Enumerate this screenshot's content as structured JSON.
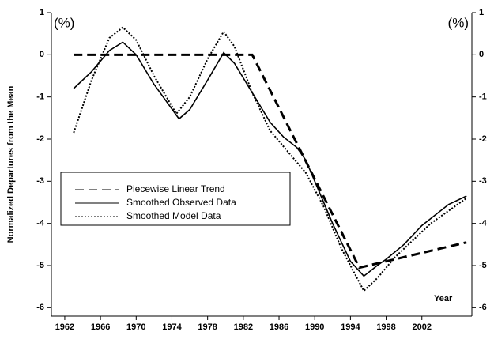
{
  "chart_data": {
    "type": "line",
    "y_label": "Normalized Departures from the Mean",
    "annotations": [
      "(%)",
      "(%)",
      "Year"
    ],
    "xlim": [
      1960.5,
      2007.6
    ],
    "xticks": [
      1962,
      1966,
      1970,
      1974,
      1978,
      1982,
      1986,
      1990,
      1994,
      1998,
      2002
    ],
    "ylim": [
      -6.2,
      1
    ],
    "yticks": [
      -6,
      -5,
      -4,
      -3,
      -2,
      -1,
      0,
      1
    ],
    "legend": "lower-left",
    "series": [
      {
        "name": "Piecewise Linear Trend",
        "color": "#000000",
        "style": "dashed",
        "x": [
          1963,
          1983,
          1995,
          2007
        ],
        "values": [
          0,
          0,
          -5.05,
          -4.45
        ]
      },
      {
        "name": "Smoothed Observed Data",
        "color": "#000000",
        "style": "solid",
        "x": [
          1963,
          1965,
          1967,
          1968.5,
          1970,
          1972,
          1974.8,
          1976,
          1978,
          1979.8,
          1981,
          1983,
          1985,
          1986.5,
          1988,
          1989,
          1990,
          1992,
          1994,
          1995.5,
          1997,
          1998,
          2000,
          2002,
          2005,
          2007
        ],
        "values": [
          -0.8,
          -0.4,
          0.1,
          0.3,
          0,
          -0.7,
          -1.52,
          -1.3,
          -0.6,
          0.05,
          -0.2,
          -0.9,
          -1.6,
          -1.95,
          -2.2,
          -2.5,
          -3.0,
          -4.0,
          -4.9,
          -5.25,
          -5.0,
          -4.85,
          -4.5,
          -4.05,
          -3.55,
          -3.35
        ]
      },
      {
        "name": "Smoothed Model Data",
        "color": "#000000",
        "style": "dotted",
        "x": [
          1963,
          1965,
          1967,
          1968.5,
          1970,
          1972,
          1974.5,
          1976,
          1978,
          1979.8,
          1981,
          1983,
          1985,
          1987,
          1989,
          1991,
          1993,
          1995.5,
          1997,
          1999,
          2001,
          2003,
          2007
        ],
        "values": [
          -1.85,
          -0.6,
          0.4,
          0.65,
          0.35,
          -0.5,
          -1.4,
          -1.0,
          -0.1,
          0.55,
          0.2,
          -0.9,
          -1.8,
          -2.3,
          -2.8,
          -3.6,
          -4.6,
          -5.6,
          -5.3,
          -4.8,
          -4.4,
          -4.0,
          -3.4
        ]
      }
    ]
  }
}
